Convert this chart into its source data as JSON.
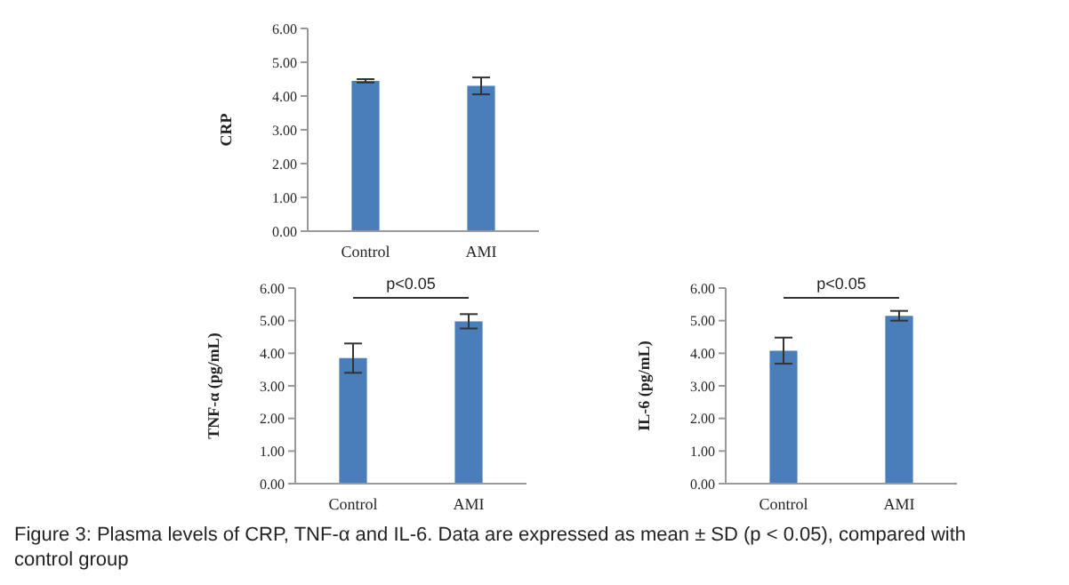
{
  "chart_data": [
    {
      "type": "bar",
      "ylabel": "CRP",
      "categories": [
        "Control",
        "AMI"
      ],
      "values": [
        4.45,
        4.3
      ],
      "errors": [
        0.05,
        0.25
      ],
      "color": "#4a7ebb",
      "ylim": [
        0,
        6
      ],
      "yticks": [
        {
          "value": 0,
          "label": "0.00"
        },
        {
          "value": 1,
          "label": "1.00"
        },
        {
          "value": 2,
          "label": "2.00"
        },
        {
          "value": 3,
          "label": "3.00"
        },
        {
          "value": 4,
          "label": "4.00"
        },
        {
          "value": 5,
          "label": "5.00"
        },
        {
          "value": 6,
          "label": "6.00"
        }
      ],
      "grid": false,
      "legend": false
    },
    {
      "type": "bar",
      "ylabel": "TNF-α (pg/mL)",
      "categories": [
        "Control",
        "AMI"
      ],
      "values": [
        3.85,
        4.98
      ],
      "errors": [
        0.45,
        0.22
      ],
      "color": "#4a7ebb",
      "ylim": [
        0,
        6
      ],
      "yticks": [
        {
          "value": 0,
          "label": "0.00"
        },
        {
          "value": 1,
          "label": "1.00"
        },
        {
          "value": 2,
          "label": "2.00"
        },
        {
          "value": 3,
          "label": "3.00"
        },
        {
          "value": 4,
          "label": "4.00"
        },
        {
          "value": 5,
          "label": "5.00"
        },
        {
          "value": 6,
          "label": "6.00"
        }
      ],
      "grid": false,
      "legend": false,
      "annotations": [
        "p<0.05"
      ]
    },
    {
      "type": "bar",
      "ylabel": "IL-6 (pg/mL)",
      "categories": [
        "Control",
        "AMI"
      ],
      "values": [
        4.08,
        5.15
      ],
      "errors": [
        0.4,
        0.15
      ],
      "color": "#4a7ebb",
      "ylim": [
        0,
        6
      ],
      "yticks": [
        {
          "value": 0,
          "label": "0.00"
        },
        {
          "value": 1,
          "label": "1.00"
        },
        {
          "value": 2,
          "label": "2.00"
        },
        {
          "value": 3,
          "label": "3.00"
        },
        {
          "value": 4,
          "label": "4.00"
        },
        {
          "value": 5,
          "label": "5.00"
        },
        {
          "value": 6,
          "label": "6.00"
        }
      ],
      "grid": false,
      "legend": false,
      "annotations": [
        "p<0.05",
        "Figure 3: Plasma levels of CRP, TNF-α and IL-6. Data are expressed as mean ± SD (p < 0.05), compared with control group"
      ]
    }
  ]
}
